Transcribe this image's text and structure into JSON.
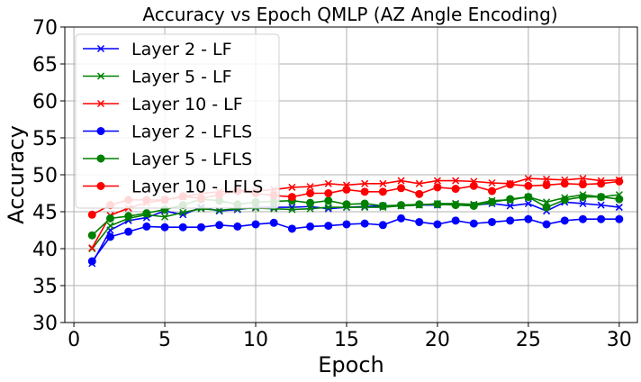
{
  "chart_data": {
    "type": "line",
    "title": "Accuracy vs Epoch QMLP (AZ Angle Encoding)",
    "xlabel": "Epoch",
    "ylabel": "Accuracy",
    "xlim": [
      -0.5,
      31.0
    ],
    "ylim": [
      30,
      70
    ],
    "xticks": [
      0,
      5,
      10,
      15,
      20,
      25,
      30
    ],
    "yticks": [
      30,
      35,
      40,
      45,
      50,
      55,
      60,
      65,
      70
    ],
    "grid": true,
    "legend_position": "top-left",
    "x": [
      1,
      2,
      3,
      4,
      5,
      6,
      7,
      8,
      9,
      10,
      11,
      12,
      13,
      14,
      15,
      16,
      17,
      18,
      19,
      20,
      21,
      22,
      23,
      24,
      25,
      26,
      27,
      28,
      29,
      30
    ],
    "series": [
      {
        "name": "Layer 2 - LF",
        "color": "#0000ff",
        "marker": "x",
        "values": [
          38.0,
          42.5,
          43.8,
          44.2,
          45.1,
          44.6,
          45.6,
          45.1,
          45.3,
          45.6,
          45.6,
          45.6,
          45.7,
          45.4,
          45.6,
          45.7,
          45.8,
          45.8,
          45.9,
          45.9,
          46.1,
          45.9,
          46.1,
          45.8,
          46.1,
          45.1,
          46.3,
          46.1,
          45.9,
          45.6
        ]
      },
      {
        "name": "Layer 5 - LF",
        "color": "#008000",
        "marker": "x",
        "values": [
          40.0,
          43.1,
          44.1,
          44.6,
          44.3,
          44.9,
          45.4,
          45.2,
          45.4,
          45.5,
          45.4,
          45.3,
          45.4,
          45.6,
          45.6,
          45.6,
          45.6,
          45.8,
          45.9,
          46.1,
          46.1,
          46.0,
          46.5,
          46.6,
          47.0,
          46.3,
          46.9,
          47.3,
          47.0,
          47.3
        ]
      },
      {
        "name": "Layer 10 - LF",
        "color": "#ff0000",
        "marker": "x",
        "values": [
          40.1,
          44.5,
          45.5,
          46.2,
          46.6,
          47.0,
          47.5,
          47.7,
          47.9,
          47.8,
          48.0,
          48.3,
          48.4,
          48.8,
          48.6,
          48.8,
          48.8,
          49.2,
          48.8,
          49.2,
          49.2,
          49.1,
          48.9,
          48.8,
          49.5,
          49.4,
          49.3,
          49.5,
          49.2,
          49.3
        ]
      },
      {
        "name": "Layer 2 - LFLS",
        "color": "#0000ff",
        "marker": "o",
        "values": [
          38.3,
          41.6,
          42.3,
          43.0,
          42.9,
          42.9,
          42.9,
          43.2,
          43.0,
          43.3,
          43.5,
          42.7,
          43.0,
          43.1,
          43.3,
          43.4,
          43.2,
          44.1,
          43.6,
          43.3,
          43.8,
          43.4,
          43.6,
          43.8,
          44.0,
          43.3,
          43.8,
          44.0,
          44.0,
          44.0
        ]
      },
      {
        "name": "Layer 5 - LFLS",
        "color": "#008000",
        "marker": "o",
        "values": [
          41.8,
          44.1,
          44.4,
          44.8,
          45.3,
          45.9,
          46.7,
          46.5,
          46.0,
          46.3,
          46.4,
          46.5,
          46.2,
          46.5,
          46.0,
          46.1,
          45.8,
          45.9,
          46.0,
          46.0,
          45.9,
          45.8,
          46.3,
          46.7,
          47.0,
          45.6,
          46.6,
          47.0,
          47.0,
          46.7
        ]
      },
      {
        "name": "Layer 10 - LFLS",
        "color": "#ff0000",
        "marker": "o",
        "values": [
          44.6,
          45.9,
          46.6,
          46.6,
          46.6,
          47.1,
          46.8,
          47.3,
          47.8,
          47.5,
          47.2,
          47.0,
          47.5,
          47.5,
          48.0,
          47.7,
          47.7,
          48.2,
          47.4,
          48.3,
          48.1,
          48.5,
          47.8,
          48.7,
          48.5,
          48.6,
          48.8,
          48.7,
          48.8,
          49.1
        ]
      }
    ]
  }
}
